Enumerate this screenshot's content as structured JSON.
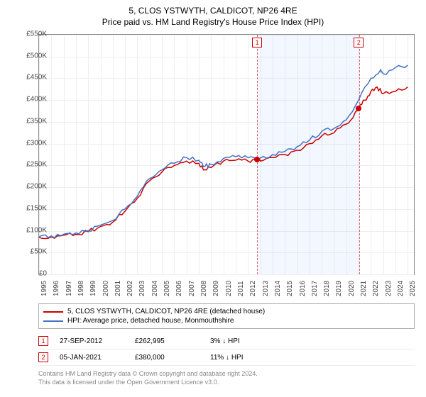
{
  "header": {
    "title": "5, CLOS YSTWYTH, CALDICOT, NP26 4RE",
    "subtitle": "Price paid vs. HM Land Registry's House Price Index (HPI)"
  },
  "chart": {
    "type": "line",
    "ylim": [
      0,
      550000
    ],
    "ytick_step": 50000,
    "yticks": [
      {
        "v": 0,
        "label": "£0"
      },
      {
        "v": 50000,
        "label": "£50K"
      },
      {
        "v": 100000,
        "label": "£100K"
      },
      {
        "v": 150000,
        "label": "£150K"
      },
      {
        "v": 200000,
        "label": "£200K"
      },
      {
        "v": 250000,
        "label": "£250K"
      },
      {
        "v": 300000,
        "label": "£300K"
      },
      {
        "v": 350000,
        "label": "£350K"
      },
      {
        "v": 400000,
        "label": "£400K"
      },
      {
        "v": 450000,
        "label": "£450K"
      },
      {
        "v": 500000,
        "label": "£500K"
      },
      {
        "v": 550000,
        "label": "£550K"
      }
    ],
    "xlim": [
      1995,
      2025.5
    ],
    "xticks": [
      1995,
      1996,
      1997,
      1998,
      1999,
      2000,
      2001,
      2002,
      2003,
      2004,
      2005,
      2006,
      2007,
      2008,
      2009,
      2010,
      2011,
      2012,
      2013,
      2014,
      2015,
      2016,
      2017,
      2018,
      2019,
      2020,
      2021,
      2022,
      2023,
      2024,
      2025
    ],
    "shaded_region": {
      "start": 2012.74,
      "end": 2021.01
    },
    "series": [
      {
        "name": "price_paid",
        "color": "#cc0000",
        "data": [
          [
            1995,
            85000
          ],
          [
            1996,
            86000
          ],
          [
            1997,
            90000
          ],
          [
            1998,
            92000
          ],
          [
            1999,
            98000
          ],
          [
            2000,
            110000
          ],
          [
            2001,
            120000
          ],
          [
            2002,
            145000
          ],
          [
            2003,
            175000
          ],
          [
            2004,
            215000
          ],
          [
            2005,
            235000
          ],
          [
            2006,
            250000
          ],
          [
            2007,
            260000
          ],
          [
            2008,
            255000
          ],
          [
            2008.5,
            240000
          ],
          [
            2009,
            245000
          ],
          [
            2010,
            260000
          ],
          [
            2011,
            262000
          ],
          [
            2012,
            260000
          ],
          [
            2012.74,
            262995
          ],
          [
            2013,
            260000
          ],
          [
            2014,
            268000
          ],
          [
            2015,
            275000
          ],
          [
            2016,
            285000
          ],
          [
            2017,
            300000
          ],
          [
            2018,
            318000
          ],
          [
            2019,
            325000
          ],
          [
            2020,
            345000
          ],
          [
            2020.7,
            370000
          ],
          [
            2021.01,
            380000
          ],
          [
            2021.5,
            400000
          ],
          [
            2022,
            420000
          ],
          [
            2022.5,
            430000
          ],
          [
            2023,
            415000
          ],
          [
            2024,
            420000
          ],
          [
            2025,
            430000
          ]
        ]
      },
      {
        "name": "hpi",
        "color": "#4472c4",
        "data": [
          [
            1995,
            86000
          ],
          [
            1996,
            88000
          ],
          [
            1997,
            92000
          ],
          [
            1998,
            95000
          ],
          [
            1999,
            100000
          ],
          [
            2000,
            113000
          ],
          [
            2001,
            124000
          ],
          [
            2002,
            150000
          ],
          [
            2003,
            180000
          ],
          [
            2004,
            220000
          ],
          [
            2005,
            240000
          ],
          [
            2006,
            255000
          ],
          [
            2007,
            268000
          ],
          [
            2008,
            262000
          ],
          [
            2008.5,
            248000
          ],
          [
            2009,
            252000
          ],
          [
            2010,
            266000
          ],
          [
            2011,
            270000
          ],
          [
            2012,
            268000
          ],
          [
            2013,
            267000
          ],
          [
            2014,
            275000
          ],
          [
            2015,
            282000
          ],
          [
            2016,
            293000
          ],
          [
            2017,
            308000
          ],
          [
            2018,
            328000
          ],
          [
            2019,
            335000
          ],
          [
            2020,
            355000
          ],
          [
            2021,
            400000
          ],
          [
            2022,
            450000
          ],
          [
            2022.8,
            470000
          ],
          [
            2023,
            460000
          ],
          [
            2024,
            475000
          ],
          [
            2025,
            480000
          ]
        ]
      }
    ],
    "markers": [
      {
        "id": "1",
        "x": 2012.74,
        "y": 262995
      },
      {
        "id": "2",
        "x": 2021.01,
        "y": 380000
      }
    ],
    "grid_color": "#eeeeee",
    "background_color": "#ffffff"
  },
  "legend": {
    "items": [
      {
        "color": "#cc0000",
        "label": "5, CLOS YSTWYTH, CALDICOT, NP26 4RE (detached house)"
      },
      {
        "color": "#4472c4",
        "label": "HPI: Average price, detached house, Monmouthshire"
      }
    ]
  },
  "transactions": [
    {
      "marker": "1",
      "date": "27-SEP-2012",
      "price": "£262,995",
      "delta": "3% ↓ HPI"
    },
    {
      "marker": "2",
      "date": "05-JAN-2021",
      "price": "£380,000",
      "delta": "11% ↓ HPI"
    }
  ],
  "disclaimer": {
    "line1": "Contains HM Land Registry data © Crown copyright and database right 2024.",
    "line2": "This data is licensed under the Open Government Licence v3.0."
  }
}
